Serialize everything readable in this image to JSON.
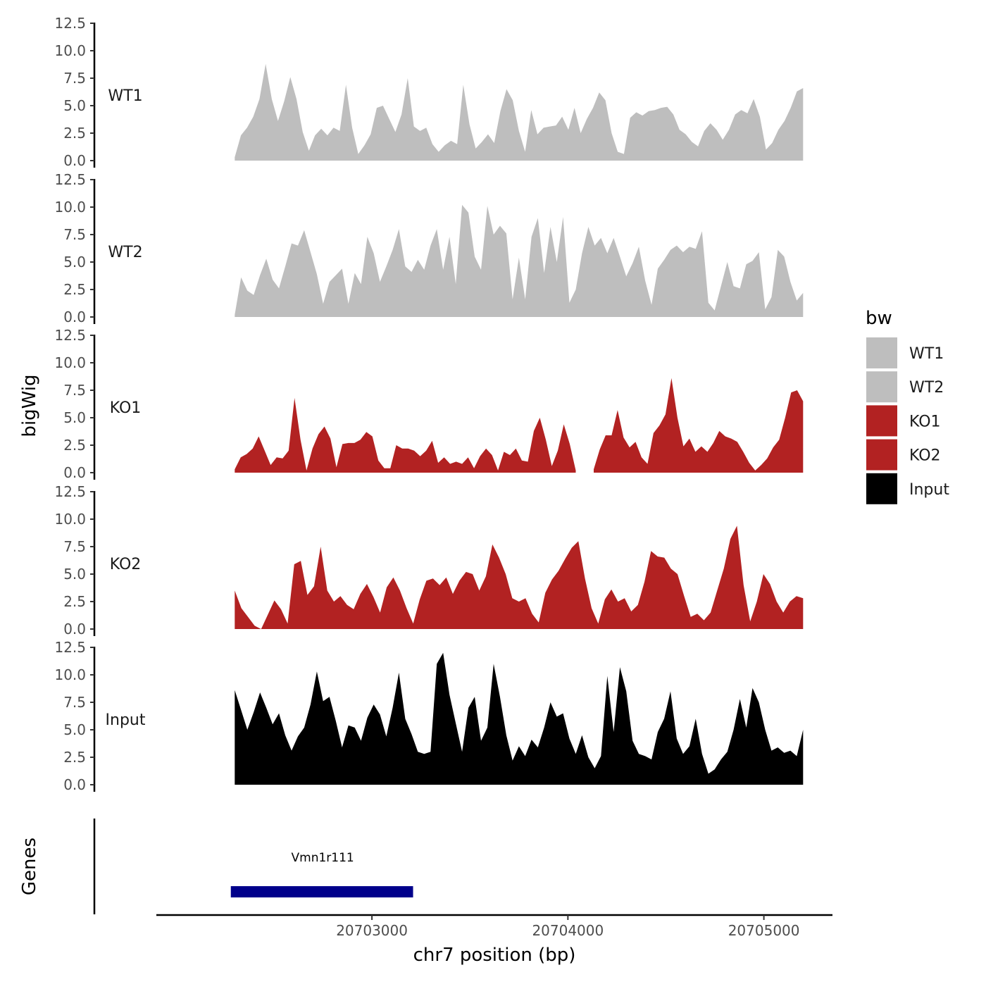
{
  "chart_data": {
    "type": "area",
    "chrom": "chr7",
    "xlabel": "chr7 position (bp)",
    "ylabel": "bigWig",
    "genes_label": "Genes",
    "x_range": [
      20702300,
      20705200
    ],
    "xlim": [
      20701900,
      20705350
    ],
    "x_ticks": [
      20703000,
      20704000,
      20705000
    ],
    "x_tick_labels": [
      "20703000",
      "20704000",
      "20705000"
    ],
    "ylim": [
      0,
      12.5
    ],
    "y_ticks": [
      0,
      2.5,
      5,
      7.5,
      10,
      12.5
    ],
    "y_tick_labels": [
      "0.0",
      "2.5",
      "5.0",
      "7.5",
      "10.0",
      "12.5"
    ],
    "legend": {
      "title": "bw",
      "position": "right",
      "entries": [
        {
          "label": "WT1",
          "color": "#bebebe"
        },
        {
          "label": "WT2",
          "color": "#bebebe"
        },
        {
          "label": "KO1",
          "color": "#b22222"
        },
        {
          "label": "KO2",
          "color": "#b22222"
        },
        {
          "label": "Input",
          "color": "#000000"
        }
      ]
    },
    "series": [
      {
        "name": "WT1",
        "color": "#bebebe",
        "values": [
          0.3,
          2.3,
          3.0,
          4.0,
          5.6,
          8.8,
          5.6,
          3.6,
          5.4,
          7.6,
          5.6,
          2.6,
          0.9,
          2.3,
          2.9,
          2.3,
          3.0,
          2.7,
          6.9,
          3.0,
          0.6,
          1.4,
          2.4,
          4.8,
          5.0,
          3.8,
          2.6,
          4.2,
          7.5,
          3.1,
          2.7,
          3.0,
          1.5,
          0.8,
          1.4,
          1.8,
          1.5,
          6.9,
          3.3,
          1.1,
          1.7,
          2.4,
          1.6,
          4.5,
          6.5,
          5.5,
          2.7,
          0.8,
          4.6,
          2.4,
          3.0,
          3.1,
          3.2,
          4.0,
          2.8,
          4.8,
          2.5,
          3.8,
          4.8,
          6.2,
          5.5,
          2.5,
          0.8,
          0.6,
          3.9,
          4.4,
          4.1,
          4.5,
          4.6,
          4.8,
          4.9,
          4.2,
          2.8,
          2.4,
          1.7,
          1.3,
          2.7,
          3.4,
          2.8,
          1.9,
          2.8,
          4.2,
          4.6,
          4.3,
          5.6,
          4.0,
          1.0,
          1.6,
          2.8,
          3.6,
          4.8,
          6.3,
          6.6
        ]
      },
      {
        "name": "WT2",
        "color": "#bebebe",
        "values": [
          0.2,
          3.6,
          2.4,
          2.0,
          3.8,
          5.3,
          3.4,
          2.6,
          4.6,
          6.7,
          6.5,
          7.9,
          5.9,
          3.9,
          1.2,
          3.2,
          3.8,
          4.4,
          1.2,
          4.0,
          3.0,
          7.3,
          5.8,
          3.2,
          4.6,
          6.1,
          8.0,
          4.6,
          4.1,
          5.2,
          4.3,
          6.5,
          8.0,
          4.3,
          7.3,
          3.0,
          10.2,
          9.5,
          5.5,
          4.3,
          10.1,
          7.5,
          8.3,
          7.6,
          1.6,
          5.4,
          1.6,
          7.3,
          9.0,
          4.0,
          8.2,
          5.0,
          9.1,
          1.3,
          2.5,
          5.8,
          8.2,
          6.5,
          7.2,
          5.8,
          7.2,
          5.5,
          3.7,
          4.9,
          6.4,
          3.3,
          1.1,
          4.4,
          5.2,
          6.1,
          6.5,
          5.9,
          6.4,
          6.2,
          7.8,
          1.3,
          0.6,
          2.8,
          5.0,
          2.8,
          2.6,
          4.8,
          5.1,
          5.9,
          0.7,
          1.8,
          6.1,
          5.5,
          3.2,
          1.5,
          2.2
        ]
      },
      {
        "name": "KO1",
        "color": "#b22222",
        "values": [
          0.3,
          1.4,
          1.7,
          2.2,
          3.3,
          2.0,
          0.7,
          1.4,
          1.3,
          2.0,
          6.8,
          3.0,
          0.2,
          2.2,
          3.5,
          4.2,
          3.1,
          0.5,
          2.6,
          2.7,
          2.7,
          3.0,
          3.7,
          3.3,
          1.1,
          0.4,
          0.4,
          2.5,
          2.2,
          2.2,
          2.0,
          1.5,
          2.0,
          2.9,
          0.9,
          1.4,
          0.8,
          1.0,
          0.8,
          1.4,
          0.4,
          1.5,
          2.2,
          1.6,
          0.2,
          1.9,
          1.6,
          2.2,
          1.1,
          1.0,
          3.8,
          5.0,
          3.0,
          0.6,
          2.0,
          4.4,
          2.6,
          0.2,
          null,
          null,
          0.3,
          2.1,
          3.4,
          3.4,
          5.7,
          3.2,
          2.3,
          2.8,
          1.4,
          0.8,
          3.6,
          4.3,
          5.3,
          8.6,
          5.0,
          2.4,
          3.1,
          1.9,
          2.4,
          1.9,
          2.7,
          3.8,
          3.3,
          3.1,
          2.8,
          1.9,
          0.9,
          0.2,
          0.7,
          1.3,
          2.3,
          3.0,
          5.0,
          7.3,
          7.5,
          6.5
        ]
      },
      {
        "name": "KO2",
        "color": "#b22222",
        "values": [
          3.5,
          1.9,
          1.1,
          0.3,
          0.0,
          1.3,
          2.6,
          1.8,
          0.5,
          5.9,
          6.2,
          3.1,
          3.9,
          7.5,
          3.5,
          2.5,
          3.0,
          2.2,
          1.8,
          3.2,
          4.1,
          2.9,
          1.5,
          3.8,
          4.7,
          3.5,
          1.9,
          0.5,
          2.7,
          4.4,
          4.6,
          4.0,
          4.7,
          3.2,
          4.4,
          5.2,
          5.0,
          3.5,
          4.8,
          7.7,
          6.5,
          5.0,
          2.8,
          2.5,
          2.8,
          1.4,
          0.6,
          3.3,
          4.5,
          5.3,
          6.4,
          7.4,
          8.0,
          4.6,
          1.9,
          0.5,
          2.7,
          3.6,
          2.5,
          2.8,
          1.6,
          2.2,
          4.3,
          7.1,
          6.6,
          6.5,
          5.5,
          5.0,
          3.0,
          1.1,
          1.4,
          0.8,
          1.5,
          3.5,
          5.5,
          8.2,
          9.4,
          4.0,
          0.7,
          2.5,
          5.0,
          4.1,
          2.5,
          1.5,
          2.5,
          3.0,
          2.8
        ]
      },
      {
        "name": "Input",
        "color": "#000000",
        "values": [
          8.6,
          6.8,
          5.0,
          6.6,
          8.4,
          7.0,
          5.5,
          6.5,
          4.5,
          3.1,
          4.4,
          5.2,
          7.3,
          10.3,
          7.6,
          8.0,
          5.8,
          3.4,
          5.4,
          5.2,
          4.0,
          6.1,
          7.3,
          6.4,
          4.4,
          7.0,
          10.2,
          6.0,
          4.6,
          3.0,
          2.8,
          3.0,
          11.0,
          12.0,
          8.2,
          5.6,
          3.0,
          7.0,
          8.0,
          4.0,
          5.2,
          11.0,
          8.0,
          4.5,
          2.2,
          3.5,
          2.6,
          4.1,
          3.4,
          5.2,
          7.5,
          6.2,
          6.5,
          4.2,
          2.8,
          4.5,
          2.5,
          1.5,
          2.6,
          9.9,
          4.8,
          10.7,
          8.5,
          4.0,
          2.8,
          2.6,
          2.3,
          4.8,
          6.0,
          8.5,
          4.2,
          2.8,
          3.5,
          6.0,
          2.8,
          1.0,
          1.4,
          2.3,
          3.0,
          5.0,
          7.8,
          5.2,
          8.8,
          7.5,
          5.0,
          3.1,
          3.4,
          2.9,
          3.1,
          2.6,
          5.0
        ]
      }
    ],
    "genes": [
      {
        "name": "Vmn1r111",
        "start": 20702280,
        "end": 20703210,
        "color": "#00008b"
      }
    ]
  }
}
